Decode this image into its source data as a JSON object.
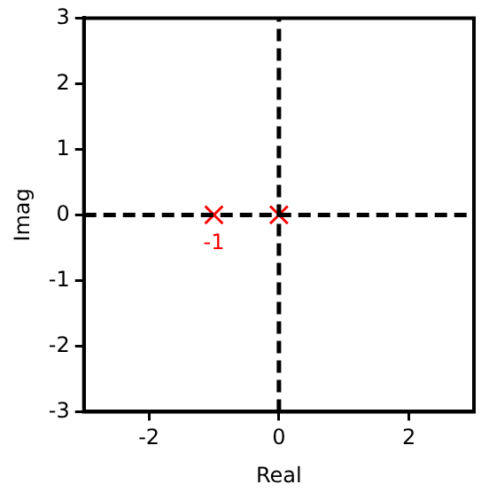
{
  "chart_data": {
    "type": "line",
    "xlabel": "Real",
    "ylabel": "Imag",
    "xlim": [
      -3,
      3
    ],
    "ylim": [
      -3,
      3
    ],
    "xticks": [
      -2,
      0,
      2
    ],
    "yticks": [
      -3,
      -2,
      -1,
      0,
      1,
      2,
      3
    ],
    "grid": false,
    "legend": false,
    "series": [
      {
        "color": "#000000",
        "line_style": "dashed",
        "marker": "none",
        "x": [
          -3,
          3
        ],
        "values": [
          0,
          0
        ]
      },
      {
        "color": "#000000",
        "line_style": "dashed",
        "marker": "none",
        "x": [
          0,
          0
        ],
        "values": [
          -3,
          3
        ]
      },
      {
        "type": "scatter",
        "color": "#ff0000",
        "marker": "cross",
        "x": [
          -1,
          0
        ],
        "values": [
          0,
          0
        ]
      }
    ],
    "annotations": [
      {
        "text": "-1",
        "x": -1,
        "y": 0
      }
    ]
  }
}
